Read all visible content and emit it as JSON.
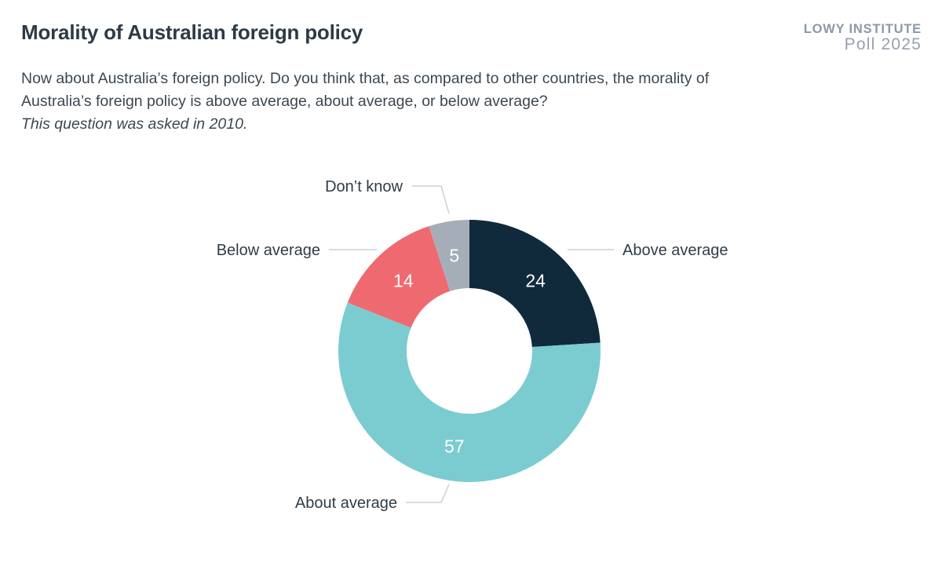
{
  "page": {
    "title": "Morality of Australian foreign policy",
    "logo": {
      "line1": "LOWY INSTITUTE",
      "line2": "Poll 2025"
    },
    "question": {
      "text": "Now about Australia’s foreign policy. Do you think that, as compared to other countries, the morality of Australia’s foreign policy is above average, about average, or below average?",
      "note": "This question was asked in 2010."
    }
  },
  "chart_data": {
    "type": "pie",
    "subtype": "donut",
    "title": "Morality of Australian foreign policy",
    "categories": [
      "Above average",
      "About average",
      "Below average",
      "Don’t know"
    ],
    "values": [
      24,
      57,
      14,
      5
    ],
    "unit": "percent",
    "total": 100,
    "colors": [
      "#102a3c",
      "#7bccd0",
      "#ef6a70",
      "#a5aeb8"
    ],
    "start_angle_deg": 0,
    "direction": "clockwise",
    "value_label_color": "#ffffff",
    "leader_line_color": "#c8d1da",
    "legend_position": "callout-labels"
  }
}
